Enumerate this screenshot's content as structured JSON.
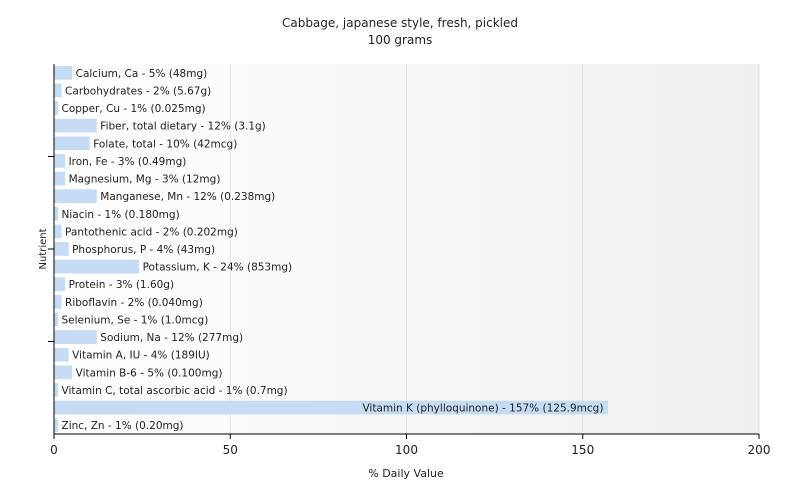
{
  "chart_data": {
    "type": "bar",
    "orientation": "horizontal",
    "title": "Cabbage, japanese style, fresh, pickled",
    "subtitle": "100 grams",
    "xlabel": "% Daily Value",
    "ylabel": "Nutrient",
    "xlim": [
      0,
      200
    ],
    "xticks": [
      "0",
      "50",
      "100",
      "150",
      "200"
    ],
    "grid": true,
    "legend": "none",
    "bar_color": "#c6dcf5",
    "categories": [
      "Calcium, Ca",
      "Carbohydrates",
      "Copper, Cu",
      "Fiber, total dietary",
      "Folate, total",
      "Iron, Fe",
      "Magnesium, Mg",
      "Manganese, Mn",
      "Niacin",
      "Pantothenic acid",
      "Phosphorus, P",
      "Potassium, K",
      "Protein",
      "Riboflavin",
      "Selenium, Se",
      "Sodium, Na",
      "Vitamin A, IU",
      "Vitamin B-6",
      "Vitamin C, total ascorbic acid",
      "Vitamin K (phylloquinone)",
      "Zinc, Zn"
    ],
    "values": [
      5,
      2,
      1,
      12,
      10,
      3,
      3,
      12,
      1,
      2,
      4,
      24,
      3,
      2,
      1,
      12,
      4,
      5,
      1,
      157,
      1
    ],
    "labels": [
      "Calcium, Ca - 5% (48mg)",
      "Carbohydrates - 2% (5.67g)",
      "Copper, Cu - 1% (0.025mg)",
      "Fiber, total dietary - 12% (3.1g)",
      "Folate, total - 10% (42mcg)",
      "Iron, Fe - 3% (0.49mg)",
      "Magnesium, Mg - 3% (12mg)",
      "Manganese, Mn - 12% (0.238mg)",
      "Niacin - 1% (0.180mg)",
      "Pantothenic acid - 2% (0.202mg)",
      "Phosphorus, P - 4% (43mg)",
      "Potassium, K - 24% (853mg)",
      "Protein - 3% (1.60g)",
      "Riboflavin - 2% (0.040mg)",
      "Selenium, Se - 1% (1.0mcg)",
      "Sodium, Na - 12% (277mg)",
      "Vitamin A, IU - 4% (189IU)",
      "Vitamin B-6 - 5% (0.100mg)",
      "Vitamin C, total ascorbic acid - 1% (0.7mg)",
      "Vitamin K (phylloquinone) - 157% (125.9mcg)",
      "Zinc, Zn - 1% (0.20mg)"
    ]
  }
}
